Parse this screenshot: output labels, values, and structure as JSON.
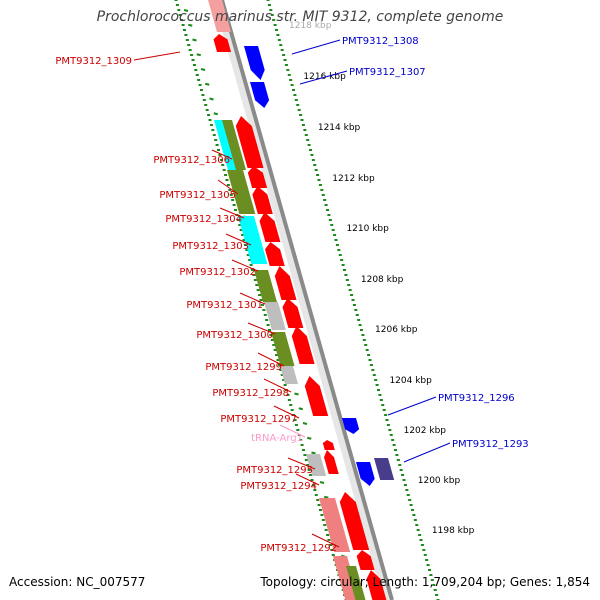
{
  "header": {
    "title": "Prochlorococcus marinus str. MIT 9312, complete genome"
  },
  "footer": {
    "accession": "Accession: NC_007577",
    "summary": "Topology: circular; Length: 1,709,204 bp; Genes: 1,854"
  },
  "colors": {
    "forward_cds": "#ff0000",
    "reverse_cds": "#0000ff",
    "cog_green": "#6b8e23",
    "cog_cyan": "#00ffff",
    "cog_gray": "#bebebe",
    "cog_pink": "#f08080",
    "rna_pink": "#ffaacc",
    "backbone": "#8a8a8a",
    "tick_green": "#1a8a1a"
  },
  "ruler": [
    {
      "label": "1218 kbp",
      "kbp": 1218
    },
    {
      "label": "1216 kbp",
      "kbp": 1216
    },
    {
      "label": "1214 kbp",
      "kbp": 1214
    },
    {
      "label": "1212 kbp",
      "kbp": 1212
    },
    {
      "label": "1210 kbp",
      "kbp": 1210
    },
    {
      "label": "1208 kbp",
      "kbp": 1208
    },
    {
      "label": "1206 kbp",
      "kbp": 1206
    },
    {
      "label": "1204 kbp",
      "kbp": 1204
    },
    {
      "label": "1202 kbp",
      "kbp": 1202
    },
    {
      "label": "1200 kbp",
      "kbp": 1200
    },
    {
      "label": "1198 kbp",
      "kbp": 1198
    }
  ],
  "gene_labels_left": [
    {
      "name": "PMT9312_1309",
      "color": "#cc0000"
    },
    {
      "name": "PMT9312_1306",
      "color": "#cc0000"
    },
    {
      "name": "PMT9312_1305",
      "color": "#cc0000"
    },
    {
      "name": "PMT9312_1304",
      "color": "#cc0000"
    },
    {
      "name": "PMT9312_1303",
      "color": "#cc0000"
    },
    {
      "name": "PMT9312_1302",
      "color": "#cc0000"
    },
    {
      "name": "PMT9312_1301",
      "color": "#cc0000"
    },
    {
      "name": "PMT9312_1300",
      "color": "#cc0000"
    },
    {
      "name": "PMT9312_1299",
      "color": "#cc0000"
    },
    {
      "name": "PMT9312_1298",
      "color": "#cc0000"
    },
    {
      "name": "PMT9312_1297",
      "color": "#cc0000"
    },
    {
      "name": "tRNA-Arg1",
      "color": "#ff99cc"
    },
    {
      "name": "PMT9312_1295",
      "color": "#cc0000"
    },
    {
      "name": "PMT9312_1294",
      "color": "#cc0000"
    },
    {
      "name": "PMT9312_1292",
      "color": "#cc0000"
    }
  ],
  "gene_labels_right": [
    {
      "name": "PMT9312_1308",
      "color": "#0000cc"
    },
    {
      "name": "PMT9312_1307",
      "color": "#0000cc"
    },
    {
      "name": "PMT9312_1296",
      "color": "#0000cc"
    },
    {
      "name": "PMT9312_1293",
      "color": "#0000cc"
    }
  ]
}
